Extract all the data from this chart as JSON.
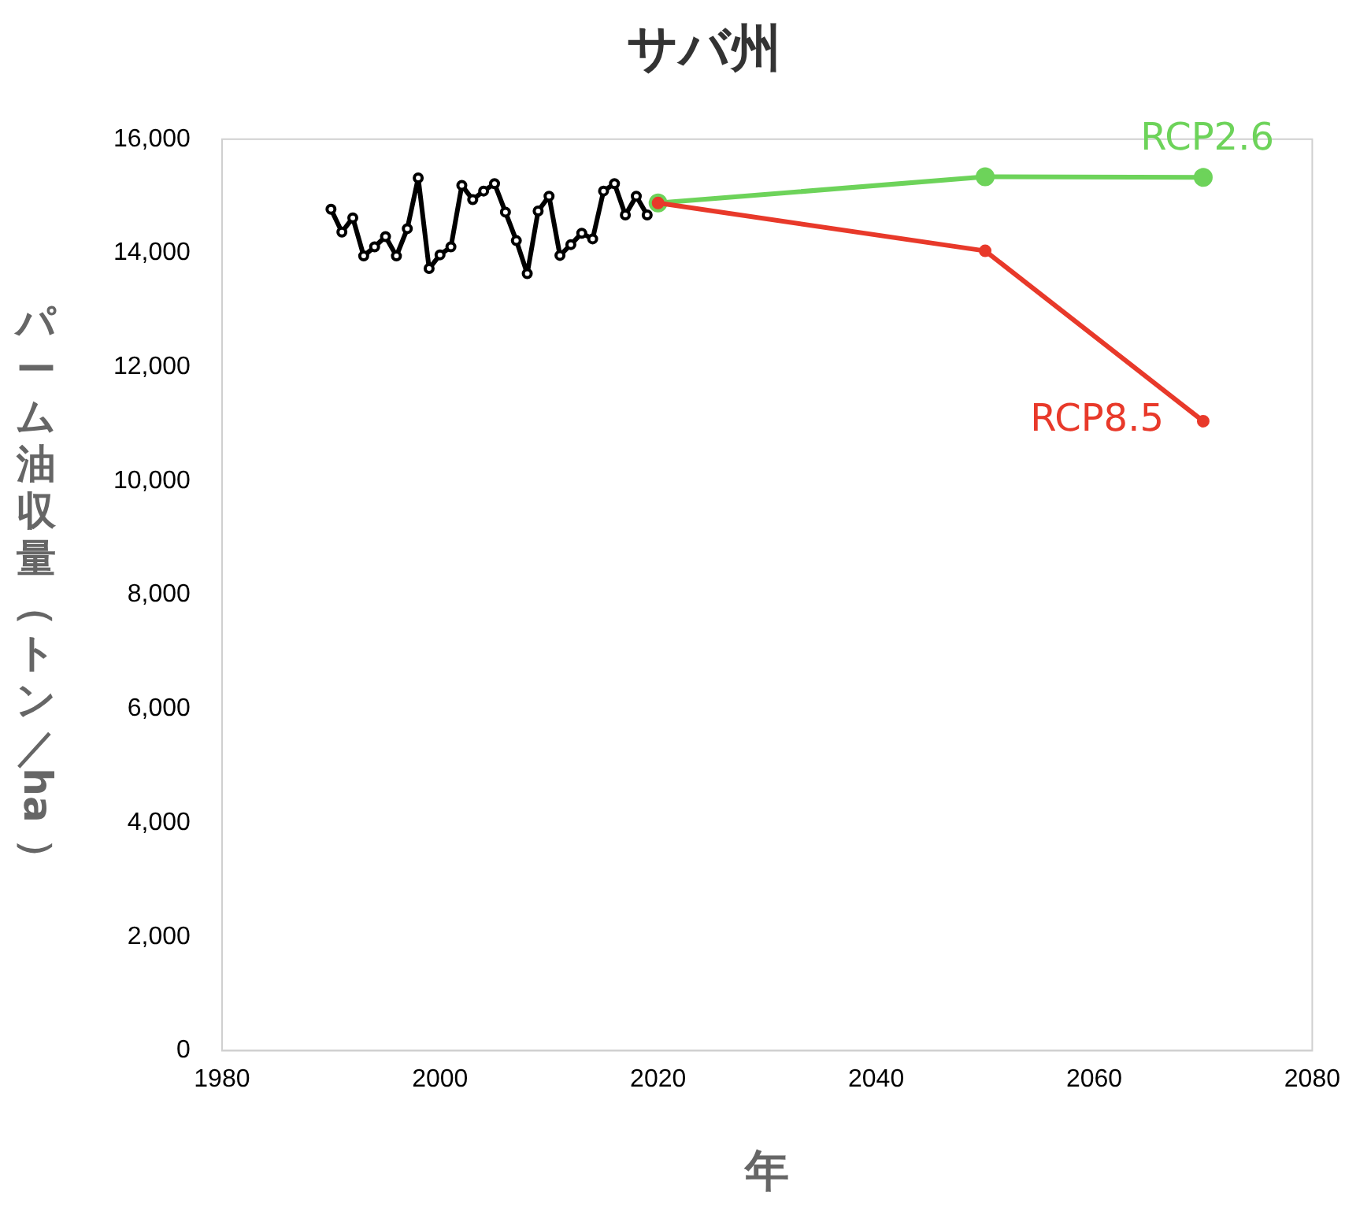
{
  "chart_data": {
    "type": "line",
    "title": "サバ州",
    "xlabel": "年",
    "ylabel": "パーム油収量（トン／ha）",
    "xlim": [
      1980,
      2080
    ],
    "xticks": [
      1980,
      2000,
      2020,
      2040,
      2060,
      2080
    ],
    "ylim": [
      0,
      16000
    ],
    "yticks": [
      {
        "value": 0,
        "label": "0"
      },
      {
        "value": 2000,
        "label": "2,000"
      },
      {
        "value": 4000,
        "label": "4,000"
      },
      {
        "value": 6000,
        "label": "6,000"
      },
      {
        "value": 8000,
        "label": "8,000"
      },
      {
        "value": 10000,
        "label": "10,000"
      },
      {
        "value": 12000,
        "label": "12,000"
      },
      {
        "value": 14000,
        "label": "14,000"
      },
      {
        "value": 16000,
        "label": "16,000"
      }
    ],
    "grid": false,
    "legend": false,
    "marker": "circle",
    "line_style": "solid",
    "series": [
      {
        "color": "#000000",
        "x": [
          1990,
          1991,
          1992,
          1993,
          1994,
          1995,
          1996,
          1997,
          1998,
          1999,
          2000,
          2001,
          2002,
          2003,
          2004,
          2005,
          2006,
          2007,
          2008,
          2009,
          2010,
          2011,
          2012,
          2013,
          2014,
          2015,
          2016,
          2017,
          2018,
          2019
        ],
        "values": [
          14770,
          14370,
          14620,
          13950,
          14110,
          14290,
          13950,
          14430,
          15320,
          13730,
          13970,
          14110,
          15190,
          14940,
          15090,
          15220,
          14720,
          14220,
          13640,
          14740,
          15000,
          13960,
          14150,
          14350,
          14250,
          15090,
          15220,
          14670,
          15000,
          14670
        ]
      },
      {
        "name": "RCP2.6",
        "color": "#6dd35a",
        "x": [
          2020,
          2050,
          2070
        ],
        "values": [
          14880,
          15340,
          15330
        ]
      },
      {
        "name": "RCP8.5",
        "color": "#e8392a",
        "x": [
          2020,
          2050,
          2070
        ],
        "values": [
          14880,
          14040,
          11050
        ]
      }
    ]
  }
}
